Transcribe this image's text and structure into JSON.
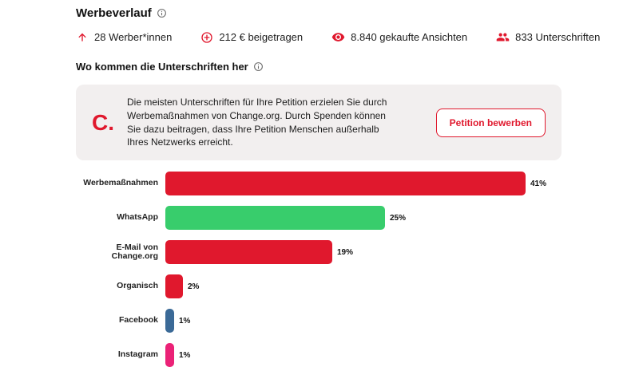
{
  "page": {
    "title": "Werbeverlauf",
    "section_title": "Wo kommen die Unterschriften her"
  },
  "stats": [
    {
      "icon": "arrow-up-icon",
      "label": "28 Werber*innen"
    },
    {
      "icon": "contribution-icon",
      "label": "212 € beigetragen"
    },
    {
      "icon": "eye-icon",
      "label": "8.840 gekaufte Ansichten"
    },
    {
      "icon": "people-icon",
      "label": "833 Unterschriften"
    }
  ],
  "promo": {
    "logo": "C.",
    "text": "Die meisten Unterschriften für Ihre Petition erzielen Sie durch Werbemaßnahmen von Change.org. Durch Spenden können Sie dazu beitragen, dass Ihre Petition Menschen außerhalb Ihres Netzwerks erreicht.",
    "button_label": "Petition bewerben"
  },
  "chart_data": {
    "type": "bar",
    "orientation": "horizontal",
    "title": "Wo kommen die Unterschriften her",
    "categories": [
      "Werbemaßnahmen",
      "WhatsApp",
      "E-Mail von Change.org",
      "Organisch",
      "Facebook",
      "Instagram"
    ],
    "values": [
      41,
      25,
      19,
      2,
      1,
      1
    ],
    "value_labels": [
      "41%",
      "25%",
      "19%",
      "2%",
      "1%",
      "1%"
    ],
    "bar_colors": [
      "#e0182d",
      "#38cd6c",
      "#e0182d",
      "#e0182d",
      "#3b6a97",
      "#eb2277"
    ],
    "xlim": [
      0,
      100
    ],
    "grid": false,
    "legend": false
  },
  "colors": {
    "accent_red": "#e0182d",
    "green": "#38cd6c",
    "blue": "#3b6a97",
    "pink": "#eb2277",
    "card_bg": "#f2efef",
    "info_gray": "#6b6b6b"
  }
}
